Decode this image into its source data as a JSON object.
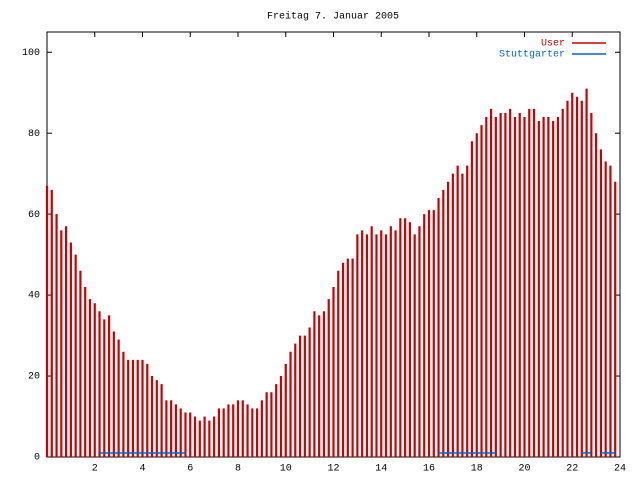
{
  "chart_data": {
    "type": "impulses",
    "title": "Freitag 7. Januar 2005",
    "x": [
      0,
      0.2,
      0.4,
      0.6,
      0.8,
      1,
      1.2,
      1.4,
      1.6,
      1.8,
      2,
      2.2,
      2.4,
      2.6,
      2.8,
      3,
      3.2,
      3.4,
      3.6,
      3.8,
      4,
      4.2,
      4.4,
      4.6,
      4.8,
      5,
      5.2,
      5.4,
      5.6,
      5.8,
      6,
      6.2,
      6.4,
      6.6,
      6.8,
      7,
      7.2,
      7.4,
      7.6,
      7.8,
      8,
      8.2,
      8.4,
      8.6,
      8.8,
      9,
      9.2,
      9.4,
      9.6,
      9.8,
      10,
      10.2,
      10.4,
      10.6,
      10.8,
      11,
      11.2,
      11.4,
      11.6,
      11.8,
      12,
      12.2,
      12.4,
      12.6,
      12.8,
      13,
      13.2,
      13.4,
      13.6,
      13.8,
      14,
      14.2,
      14.4,
      14.6,
      14.8,
      15,
      15.2,
      15.4,
      15.6,
      15.8,
      16,
      16.2,
      16.4,
      16.6,
      16.8,
      17,
      17.2,
      17.4,
      17.6,
      17.8,
      18,
      18.2,
      18.4,
      18.6,
      18.8,
      19,
      19.2,
      19.4,
      19.6,
      19.8,
      20,
      20.2,
      20.4,
      20.6,
      20.8,
      21,
      21.2,
      21.4,
      21.6,
      21.8,
      22,
      22.2,
      22.4,
      22.6,
      22.8,
      23,
      23.2,
      23.4,
      23.6,
      23.8
    ],
    "series": [
      {
        "name": "User",
        "color": "#cc0000",
        "values": [
          67,
          66,
          60,
          56,
          57,
          53,
          50,
          46,
          42,
          39,
          38,
          36,
          34,
          35,
          31,
          29,
          26,
          24,
          24,
          24,
          24,
          23,
          20,
          19,
          18,
          14,
          14,
          13,
          12,
          11,
          11,
          10,
          9,
          10,
          9,
          10,
          12,
          12,
          13,
          13,
          14,
          14,
          13,
          12,
          12,
          14,
          16,
          16,
          18,
          20,
          23,
          26,
          28,
          30,
          30,
          32,
          36,
          35,
          36,
          39,
          42,
          46,
          48,
          49,
          49,
          55,
          56,
          55,
          57,
          55,
          56,
          55,
          57,
          56,
          59,
          59,
          58,
          55,
          57,
          60,
          61,
          61,
          64,
          66,
          68,
          70,
          72,
          70,
          72,
          78,
          80,
          82,
          84,
          86,
          84,
          85,
          85,
          86,
          84,
          85,
          84,
          86,
          86,
          83,
          84,
          84,
          83,
          84,
          86,
          88,
          90,
          89,
          88,
          91,
          85,
          80,
          76,
          73,
          72,
          68
        ]
      },
      {
        "name": "Stuttgarter",
        "color": "#0066cc",
        "values": [
          null,
          null,
          null,
          null,
          null,
          null,
          null,
          null,
          null,
          null,
          null,
          1,
          1,
          1,
          1,
          1,
          1,
          1,
          1,
          1,
          1,
          1,
          1,
          1,
          1,
          1,
          1,
          1,
          1,
          1,
          null,
          null,
          null,
          null,
          null,
          null,
          null,
          null,
          null,
          null,
          null,
          null,
          null,
          null,
          null,
          null,
          null,
          null,
          null,
          null,
          null,
          null,
          null,
          null,
          null,
          null,
          null,
          null,
          null,
          null,
          null,
          null,
          null,
          null,
          null,
          null,
          null,
          null,
          null,
          null,
          null,
          null,
          null,
          null,
          null,
          null,
          null,
          null,
          null,
          null,
          null,
          null,
          1,
          1,
          1,
          1,
          1,
          1,
          1,
          1,
          1,
          1,
          1,
          1,
          1,
          null,
          null,
          null,
          null,
          null,
          null,
          null,
          null,
          null,
          null,
          null,
          null,
          null,
          null,
          null,
          null,
          null,
          1,
          1,
          1,
          null,
          1,
          1,
          1,
          1
        ]
      }
    ],
    "xlim": [
      0,
      24
    ],
    "xticks": [
      2,
      4,
      6,
      8,
      10,
      12,
      14,
      16,
      18,
      20,
      22,
      24
    ],
    "ylim": [
      0,
      105
    ],
    "yticks": [
      0,
      20,
      40,
      60,
      80,
      100
    ],
    "legend": "top-right"
  }
}
